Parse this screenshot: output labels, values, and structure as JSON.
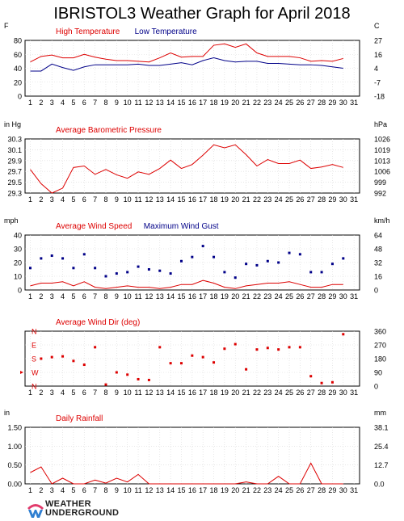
{
  "page": {
    "title": "IBRISTOL3 Weather Graph for April 2018",
    "logo_line1": "WEATHER",
    "logo_line2": "UNDERGROUND"
  },
  "chart_data": [
    {
      "id": "temperature",
      "type": "line",
      "left_unit": "F",
      "right_unit": "C",
      "legend": [
        {
          "name": "High Temperature",
          "color": "#dd0000"
        },
        {
          "name": "Low Temperature",
          "color": "#000088"
        }
      ],
      "x": [
        1,
        2,
        3,
        4,
        5,
        6,
        7,
        8,
        9,
        10,
        11,
        12,
        13,
        14,
        15,
        16,
        17,
        18,
        19,
        20,
        21,
        22,
        23,
        24,
        25,
        26,
        27,
        28,
        29,
        30,
        31
      ],
      "ylim": [
        0,
        80
      ],
      "yticks": [
        "0",
        "20",
        "40",
        "60",
        "80"
      ],
      "right_ticks": [
        "-18",
        "-7",
        "4",
        "16",
        "27"
      ],
      "series": [
        {
          "name": "High Temperature",
          "color": "#dd0000",
          "values": [
            49,
            57,
            59,
            55,
            55,
            60,
            56,
            53,
            51,
            51,
            50,
            49,
            55,
            62,
            56,
            57,
            57,
            73,
            75,
            70,
            75,
            62,
            57,
            57,
            57,
            55,
            50,
            51,
            50,
            54,
            null
          ]
        },
        {
          "name": "Low Temperature",
          "color": "#000088",
          "values": [
            36,
            36,
            46,
            41,
            37,
            42,
            45,
            45,
            45,
            45,
            46,
            44,
            44,
            46,
            48,
            45,
            51,
            55,
            51,
            49,
            50,
            50,
            47,
            47,
            46,
            45,
            45,
            44,
            42,
            40,
            null
          ]
        }
      ]
    },
    {
      "id": "pressure",
      "type": "line",
      "left_unit": "in Hg",
      "right_unit": "hPa",
      "legend": [
        {
          "name": "Average Barometric Pressure",
          "color": "#dd0000"
        }
      ],
      "x": [
        1,
        2,
        3,
        4,
        5,
        6,
        7,
        8,
        9,
        10,
        11,
        12,
        13,
        14,
        15,
        16,
        17,
        18,
        19,
        20,
        21,
        22,
        23,
        24,
        25,
        26,
        27,
        28,
        29,
        30,
        31
      ],
      "ylim": [
        29.3,
        30.4
      ],
      "yticks": [
        "29.3",
        "29.5",
        "29.7",
        "29.9",
        "30.1",
        "30.3"
      ],
      "right_ticks": [
        "992",
        "999",
        "1006",
        "1013",
        "1019",
        "1026"
      ],
      "series": [
        {
          "name": "Average Barometric Pressure",
          "color": "#dd0000",
          "values": [
            29.78,
            29.49,
            29.3,
            29.4,
            29.82,
            29.85,
            29.68,
            29.78,
            29.67,
            29.6,
            29.73,
            29.68,
            29.8,
            29.97,
            29.8,
            29.88,
            30.07,
            30.28,
            30.22,
            30.28,
            30.08,
            29.85,
            29.98,
            29.9,
            29.9,
            29.97,
            29.8,
            29.83,
            29.88,
            29.82,
            null
          ]
        }
      ]
    },
    {
      "id": "wind",
      "type": "line",
      "left_unit": "mph",
      "right_unit": "km/h",
      "legend": [
        {
          "name": "Average Wind Speed",
          "color": "#dd0000"
        },
        {
          "name": "Maximum Wind Gust",
          "color": "#000088"
        }
      ],
      "x": [
        1,
        2,
        3,
        4,
        5,
        6,
        7,
        8,
        9,
        10,
        11,
        12,
        13,
        14,
        15,
        16,
        17,
        18,
        19,
        20,
        21,
        22,
        23,
        24,
        25,
        26,
        27,
        28,
        29,
        30,
        31
      ],
      "ylim": [
        0,
        40
      ],
      "yticks": [
        "0",
        "10",
        "20",
        "30",
        "40"
      ],
      "right_ticks": [
        "0",
        "16",
        "32",
        "48",
        "64"
      ],
      "series": [
        {
          "name": "Average Wind Speed",
          "color": "#dd0000",
          "style": "line",
          "values": [
            3,
            5,
            5,
            6,
            3,
            6,
            2,
            1,
            2,
            3,
            2,
            2,
            1,
            2,
            4,
            4,
            7,
            5,
            2,
            1,
            3,
            4,
            5,
            5,
            6,
            4,
            2,
            2,
            4,
            4,
            null
          ]
        },
        {
          "name": "Maximum Wind Gust",
          "color": "#000088",
          "style": "markers",
          "values": [
            16,
            23,
            25,
            23,
            16,
            26,
            16,
            10,
            12,
            13,
            17,
            15,
            14,
            12,
            21,
            24,
            32,
            24,
            13,
            9,
            19,
            18,
            21,
            20,
            27,
            26,
            13,
            13,
            19,
            23,
            null
          ]
        }
      ]
    },
    {
      "id": "winddir",
      "type": "scatter",
      "left_unit": "",
      "right_unit": "",
      "legend": [
        {
          "name": "Average Wind Dir (deg)",
          "color": "#dd0000"
        }
      ],
      "x": [
        1,
        2,
        3,
        4,
        5,
        6,
        7,
        8,
        9,
        10,
        11,
        12,
        13,
        14,
        15,
        16,
        17,
        18,
        19,
        20,
        21,
        22,
        23,
        24,
        25,
        26,
        27,
        28,
        29,
        30,
        31
      ],
      "ylim": [
        0,
        360
      ],
      "compass_labels": [
        "N",
        "W",
        "S",
        "E",
        "N"
      ],
      "compass_color": "#dd0000",
      "right_ticks": [
        "0",
        "90",
        "180",
        "270",
        "360"
      ],
      "series": [
        {
          "name": "Average Wind Dir (deg)",
          "color": "#dd0000",
          "values": [
            null,
            180,
            190,
            195,
            165,
            140,
            255,
            10,
            90,
            75,
            45,
            40,
            255,
            150,
            150,
            200,
            190,
            155,
            245,
            275,
            110,
            240,
            250,
            240,
            255,
            255,
            65,
            20,
            25,
            340,
            null
          ]
        }
      ]
    },
    {
      "id": "rain",
      "type": "area",
      "left_unit": "in",
      "right_unit": "mm",
      "legend": [
        {
          "name": "Daily Rainfall",
          "color": "#dd0000"
        }
      ],
      "x": [
        1,
        2,
        3,
        4,
        5,
        6,
        7,
        8,
        9,
        10,
        11,
        12,
        13,
        14,
        15,
        16,
        17,
        18,
        19,
        20,
        21,
        22,
        23,
        24,
        25,
        26,
        27,
        28,
        29,
        30,
        31
      ],
      "ylim": [
        0,
        1.5
      ],
      "yticks": [
        "0.00",
        "0.50",
        "1.00",
        "1.50"
      ],
      "right_ticks": [
        "0.0",
        "12.7",
        "25.4",
        "38.1"
      ],
      "series": [
        {
          "name": "Daily Rainfall",
          "color": "#dd0000",
          "values": [
            0.3,
            0.45,
            0.0,
            0.15,
            0.0,
            0.0,
            0.1,
            0.02,
            0.15,
            0.05,
            0.25,
            0.0,
            0.0,
            0.0,
            0.0,
            0.0,
            0.0,
            0.0,
            0.0,
            0.0,
            0.05,
            0.0,
            0.0,
            0.2,
            0.0,
            0.0,
            0.55,
            0.0,
            0.0,
            0.0,
            null
          ]
        }
      ]
    }
  ]
}
